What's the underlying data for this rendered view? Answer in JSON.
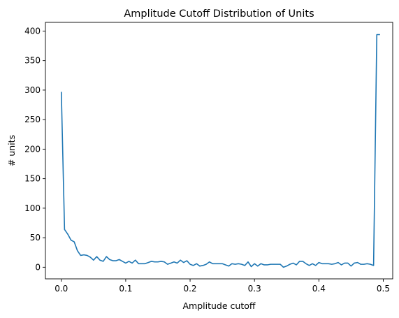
{
  "chart_data": {
    "type": "line",
    "title": "Amplitude Cutoff Distribution of Units",
    "xlabel": "Amplitude cutoff",
    "ylabel": "# units",
    "xlim": [
      -0.0247,
      0.5147
    ],
    "ylim": [
      -19.7,
      414.7
    ],
    "xticks": [
      0.0,
      0.1,
      0.2,
      0.3,
      0.4,
      0.5
    ],
    "xtick_labels": [
      "0.0",
      "0.1",
      "0.2",
      "0.3",
      "0.4",
      "0.5"
    ],
    "yticks": [
      0,
      50,
      100,
      150,
      200,
      250,
      300,
      350,
      400
    ],
    "ytick_labels": [
      "0",
      "50",
      "100",
      "150",
      "200",
      "250",
      "300",
      "350",
      "400"
    ],
    "grid": false,
    "line_color": "#1f77b4",
    "series": [
      {
        "x": [
          0.0,
          0.005,
          0.01,
          0.015,
          0.02,
          0.025,
          0.03,
          0.035,
          0.04,
          0.045,
          0.05,
          0.055,
          0.06,
          0.065,
          0.07,
          0.075,
          0.08,
          0.085,
          0.09,
          0.095,
          0.1,
          0.105,
          0.11,
          0.115,
          0.12,
          0.125,
          0.13,
          0.135,
          0.14,
          0.145,
          0.15,
          0.155,
          0.16,
          0.165,
          0.17,
          0.175,
          0.18,
          0.185,
          0.19,
          0.195,
          0.2,
          0.205,
          0.21,
          0.215,
          0.22,
          0.225,
          0.23,
          0.235,
          0.24,
          0.245,
          0.25,
          0.255,
          0.26,
          0.265,
          0.27,
          0.275,
          0.28,
          0.285,
          0.29,
          0.295,
          0.3,
          0.305,
          0.31,
          0.315,
          0.32,
          0.325,
          0.33,
          0.335,
          0.34,
          0.345,
          0.35,
          0.355,
          0.36,
          0.365,
          0.37,
          0.375,
          0.38,
          0.385,
          0.39,
          0.395,
          0.4,
          0.405,
          0.41,
          0.415,
          0.42,
          0.425,
          0.43,
          0.435,
          0.44,
          0.445,
          0.45,
          0.455,
          0.46,
          0.465,
          0.47,
          0.475,
          0.48,
          0.485,
          0.49,
          0.495
        ],
        "values": [
          297,
          64,
          56,
          46,
          43,
          28,
          20,
          21,
          20,
          17,
          12,
          18,
          12,
          10,
          18,
          13,
          11,
          11,
          13,
          10,
          7,
          10,
          7,
          12,
          6,
          6,
          6,
          8,
          10,
          9,
          9,
          10,
          9,
          5,
          7,
          9,
          7,
          12,
          8,
          11,
          5,
          3,
          6,
          2,
          3,
          5,
          9,
          6,
          6,
          6,
          6,
          4,
          2,
          6,
          5,
          6,
          5,
          3,
          9,
          1,
          6,
          2,
          6,
          4,
          4,
          5,
          5,
          5,
          5,
          0,
          2,
          5,
          7,
          4,
          10,
          10,
          6,
          3,
          6,
          3,
          8,
          6,
          6,
          6,
          5,
          6,
          8,
          4,
          7,
          7,
          2,
          7,
          8,
          5,
          5,
          6,
          5,
          3,
          394,
          394
        ]
      }
    ]
  }
}
